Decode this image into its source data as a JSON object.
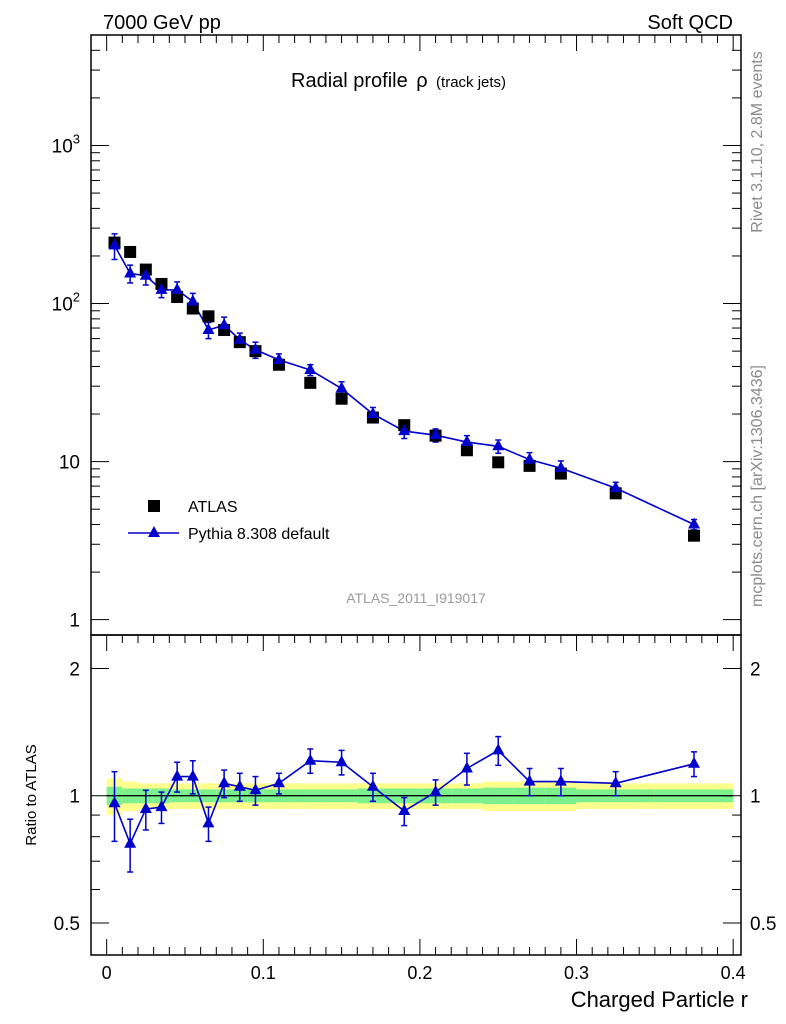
{
  "header": {
    "left": "7000 GeV pp",
    "right": "Soft QCD"
  },
  "side_text": {
    "rivet": "Rivet 3.1.10,  2.8M events",
    "mcplots": "mcplots.cern.ch [arXiv:1306.3436]"
  },
  "chart_data": [
    {
      "type": "scatter",
      "title": "Radial profile",
      "title_symbol": "ρ",
      "title_suffix": "(track jets)",
      "watermark": "ATLAS_2011_I919017",
      "xlabel": "Charged Particle r",
      "ylabel": "",
      "xlim": [
        -0.01,
        0.405
      ],
      "ylim": [
        0.8,
        5000
      ],
      "yscale": "log",
      "y_tick_labels": [
        "1",
        "10",
        "10^2",
        "10^3"
      ],
      "legend_position": "lower-left",
      "colors": {
        "data": "#000000",
        "mc": "#0000cc"
      },
      "series": [
        {
          "name": "ATLAS",
          "style": "square-marker",
          "x": [
            0.005,
            0.015,
            0.025,
            0.035,
            0.045,
            0.055,
            0.065,
            0.075,
            0.085,
            0.095,
            0.11,
            0.13,
            0.15,
            0.17,
            0.19,
            0.21,
            0.23,
            0.25,
            0.27,
            0.29,
            0.325,
            0.375
          ],
          "y": [
            243,
            212,
            164,
            133,
            110,
            93,
            83,
            68,
            57,
            50,
            41,
            31.5,
            25,
            19,
            17,
            14.6,
            11.8,
            9.9,
            9.4,
            8.4,
            6.3,
            3.4
          ]
        },
        {
          "name": "Pythia 8.308 default",
          "style": "triangle-line",
          "x": [
            0.005,
            0.015,
            0.025,
            0.035,
            0.045,
            0.055,
            0.065,
            0.075,
            0.085,
            0.095,
            0.11,
            0.13,
            0.15,
            0.17,
            0.19,
            0.21,
            0.23,
            0.25,
            0.27,
            0.29,
            0.325,
            0.375
          ],
          "y": [
            233,
            155,
            150,
            122,
            122,
            103,
            68,
            73,
            59,
            51,
            44,
            38,
            29,
            20,
            15.6,
            14.7,
            13.3,
            12.5,
            10.3,
            9.1,
            6.8,
            4.0
          ],
          "err_low": [
            43,
            20,
            19,
            13,
            15,
            13,
            8,
            9,
            6,
            6,
            4,
            3,
            3,
            2,
            1.6,
            1.4,
            1.3,
            1.2,
            1.1,
            1.0,
            0.6,
            0.3
          ],
          "err_high": [
            43,
            20,
            19,
            13,
            15,
            13,
            8,
            9,
            6,
            6,
            4,
            3,
            3,
            2,
            1.6,
            1.4,
            1.3,
            1.2,
            1.1,
            1.0,
            0.6,
            0.3
          ]
        }
      ]
    },
    {
      "type": "line",
      "title": "",
      "xlabel": "Charged Particle r",
      "ylabel": "Ratio to ATLAS",
      "xlim": [
        -0.01,
        0.405
      ],
      "ylim": [
        0.42,
        2.4
      ],
      "yscale": "log",
      "y_tick_labels": [
        "0.5",
        "1",
        "2"
      ],
      "x_tick_labels": [
        "0",
        "0.1",
        "0.2",
        "0.3",
        "0.4"
      ],
      "reference_line": 1,
      "band_colors": {
        "inner": "#7cf08c",
        "outer": "#ffff8c"
      },
      "series": [
        {
          "name": "Pythia 8.308 default",
          "x": [
            0.005,
            0.015,
            0.025,
            0.035,
            0.045,
            0.055,
            0.065,
            0.075,
            0.085,
            0.095,
            0.11,
            0.13,
            0.15,
            0.17,
            0.19,
            0.21,
            0.23,
            0.25,
            0.27,
            0.29,
            0.325,
            0.375
          ],
          "y": [
            0.96,
            0.77,
            0.93,
            0.94,
            1.11,
            1.11,
            0.86,
            1.07,
            1.05,
            1.03,
            1.07,
            1.21,
            1.2,
            1.05,
            0.92,
            1.02,
            1.16,
            1.28,
            1.08,
            1.08,
            1.07,
            1.19
          ],
          "err_low": [
            0.18,
            0.11,
            0.1,
            0.08,
            0.09,
            0.1,
            0.08,
            0.08,
            0.08,
            0.08,
            0.06,
            0.08,
            0.08,
            0.08,
            0.07,
            0.07,
            0.1,
            0.1,
            0.08,
            0.08,
            0.07,
            0.08
          ],
          "err_high": [
            0.18,
            0.11,
            0.1,
            0.08,
            0.09,
            0.1,
            0.08,
            0.08,
            0.08,
            0.08,
            0.06,
            0.08,
            0.08,
            0.08,
            0.07,
            0.07,
            0.1,
            0.1,
            0.08,
            0.08,
            0.07,
            0.08
          ]
        }
      ],
      "data_band": {
        "x_edges": [
          0.0,
          0.01,
          0.02,
          0.03,
          0.04,
          0.05,
          0.06,
          0.07,
          0.08,
          0.09,
          0.1,
          0.12,
          0.14,
          0.16,
          0.18,
          0.2,
          0.22,
          0.24,
          0.26,
          0.28,
          0.3,
          0.35,
          0.4
        ],
        "inner_half": [
          0.05,
          0.04,
          0.04,
          0.04,
          0.035,
          0.035,
          0.035,
          0.035,
          0.035,
          0.035,
          0.035,
          0.035,
          0.035,
          0.04,
          0.04,
          0.04,
          0.04,
          0.045,
          0.045,
          0.045,
          0.035,
          0.035
        ],
        "outer_half": [
          0.1,
          0.08,
          0.07,
          0.07,
          0.07,
          0.07,
          0.07,
          0.07,
          0.07,
          0.07,
          0.07,
          0.07,
          0.07,
          0.07,
          0.07,
          0.07,
          0.07,
          0.08,
          0.08,
          0.08,
          0.07,
          0.07
        ]
      }
    }
  ]
}
